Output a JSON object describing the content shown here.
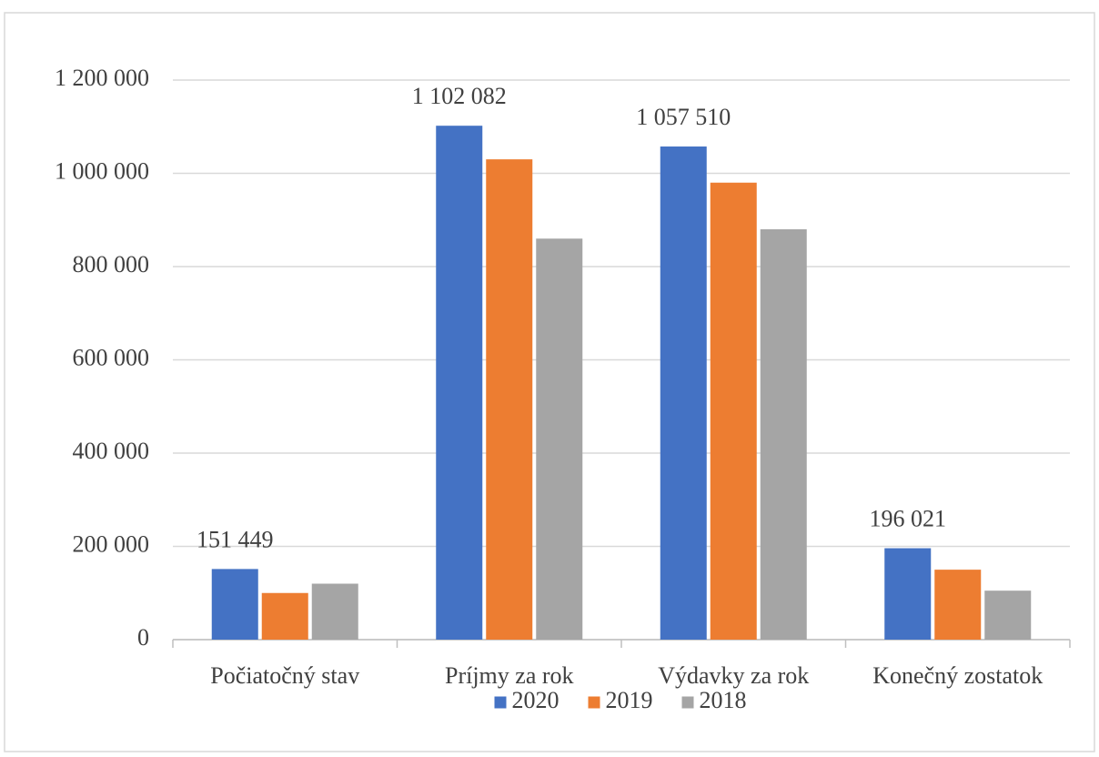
{
  "chart_data": {
    "type": "bar",
    "categories": [
      "Počiatočný stav",
      "Príjmy za rok",
      "Výdavky za rok",
      "Konečný zostatok"
    ],
    "series": [
      {
        "name": "2020",
        "color": "#4472c4",
        "values": [
          151449,
          1102082,
          1057510,
          196021
        ],
        "value_labels": [
          "151 449",
          "1 102 082",
          "1 057 510",
          "196 021"
        ]
      },
      {
        "name": "2019",
        "color": "#ed7d31",
        "values": [
          100000,
          1030000,
          980000,
          150000
        ]
      },
      {
        "name": "2018",
        "color": "#a5a5a5",
        "values": [
          120000,
          860000,
          880000,
          105000
        ]
      }
    ],
    "ylim": [
      0,
      1200000
    ],
    "yticks": [
      0,
      {
        "value": 200000,
        "label": "200 000"
      },
      {
        "value": 400000,
        "label": "400 000"
      },
      {
        "value": 600000,
        "label": "600 000"
      },
      {
        "value": 800000,
        "label": "800 000"
      },
      {
        "value": 1000000,
        "label": "1 000 000"
      },
      {
        "value": 1200000,
        "label": "1 200 000"
      }
    ],
    "grid": true,
    "legend": "bottom"
  }
}
